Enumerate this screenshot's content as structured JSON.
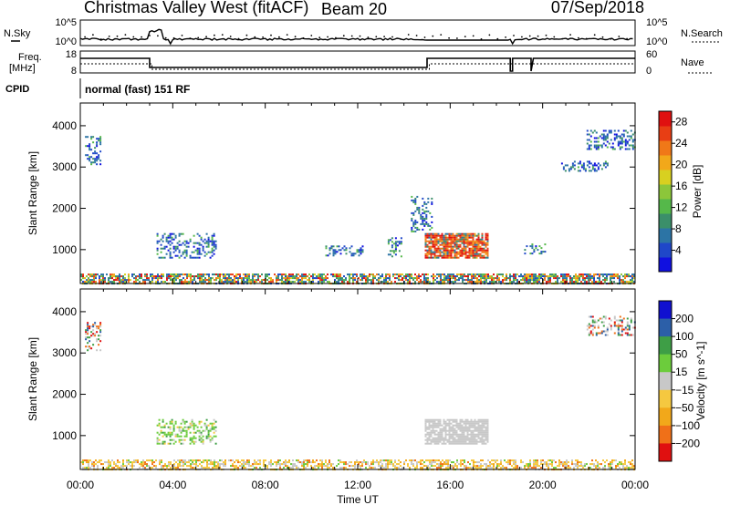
{
  "header": {
    "title": "Christmas Valley West (fitACF)",
    "beam": "Beam 20",
    "date": "07/Sep/2018"
  },
  "strip_noise": {
    "left_label": "N.Sky",
    "right_label": "N.Search",
    "left_ticks": [
      "10^5",
      "10^0"
    ],
    "right_ticks": [
      "10^5",
      "10^0"
    ]
  },
  "strip_freq": {
    "left_label_1": "Freq.",
    "left_label_2": "[MHz]",
    "right_label": "Nave",
    "left_ticks": [
      "18",
      "8"
    ],
    "right_ticks": [
      "60",
      "0"
    ]
  },
  "cpid": {
    "label": "CPID",
    "value": "normal (fast) 151 RF"
  },
  "colors": {
    "power": [
      "#1010e0",
      "#1f47c9",
      "#2c74a5",
      "#3b8f6a",
      "#55b84a",
      "#8cc63a",
      "#d8d020",
      "#f2a81a",
      "#f07818",
      "#e83e14",
      "#e01010"
    ],
    "velocity": [
      "#e01010",
      "#f07018",
      "#f2a81a",
      "#f5c840",
      "#c8c8c8",
      "#6ccc3c",
      "#3e9e46",
      "#2c5fa8",
      "#1010d0"
    ]
  },
  "chart_data": [
    {
      "type": "heatmap",
      "panel": "power",
      "xlabel": "",
      "ylabel": "Slant Range [km]",
      "x_ticks": [
        "00:00",
        "04:00",
        "08:00",
        "12:00",
        "16:00",
        "20:00",
        "00:00"
      ],
      "y_ticks": [
        "1000",
        "2000",
        "3000",
        "4000"
      ],
      "xlim_hours": [
        0,
        24
      ],
      "ylim_km": [
        180,
        4550
      ],
      "colorbar": {
        "label": "Power [dB]",
        "ticks": [
          "4",
          "8",
          "12",
          "16",
          "20",
          "24",
          "28"
        ],
        "range": [
          0,
          30
        ]
      },
      "echo_regions": [
        {
          "t0": 0.0,
          "t1": 24.0,
          "r0": 180,
          "r1": 420,
          "level": "mixed-high"
        },
        {
          "t0": 3.3,
          "t1": 5.9,
          "r0": 820,
          "r1": 1400,
          "level": "low"
        },
        {
          "t0": 14.9,
          "t1": 17.6,
          "r0": 820,
          "r1": 1400,
          "level": "high"
        },
        {
          "t0": 14.3,
          "t1": 15.2,
          "r0": 1450,
          "r1": 2300,
          "level": "low"
        },
        {
          "t0": 10.6,
          "t1": 12.2,
          "r0": 850,
          "r1": 1100,
          "level": "low"
        },
        {
          "t0": 13.3,
          "t1": 13.9,
          "r0": 820,
          "r1": 1300,
          "level": "low"
        },
        {
          "t0": 19.2,
          "t1": 20.1,
          "r0": 900,
          "r1": 1150,
          "level": "low"
        },
        {
          "t0": 0.2,
          "t1": 0.9,
          "r0": 3050,
          "r1": 3750,
          "level": "low"
        },
        {
          "t0": 21.9,
          "t1": 24.0,
          "r0": 3450,
          "r1": 3900,
          "level": "low"
        },
        {
          "t0": 20.8,
          "t1": 22.8,
          "r0": 2900,
          "r1": 3150,
          "level": "low"
        }
      ]
    },
    {
      "type": "heatmap",
      "panel": "velocity",
      "xlabel": "Time UT",
      "ylabel": "Slant Range [km]",
      "x_ticks": [
        "00:00",
        "04:00",
        "08:00",
        "12:00",
        "16:00",
        "20:00",
        "00:00"
      ],
      "y_ticks": [
        "1000",
        "2000",
        "3000",
        "4000"
      ],
      "xlim_hours": [
        0,
        24
      ],
      "ylim_km": [
        180,
        4550
      ],
      "colorbar": {
        "label": "Velocity [m s^-1]",
        "ticks": [
          "200",
          "100",
          "50",
          "15",
          "−15",
          "−50",
          "−100",
          "−200"
        ]
      },
      "echo_regions": [
        {
          "t0": 0.0,
          "t1": 24.0,
          "r0": 180,
          "r1": 420,
          "level": "negative-mixed"
        },
        {
          "t0": 3.3,
          "t1": 5.9,
          "r0": 820,
          "r1": 1400,
          "level": "positive-small"
        },
        {
          "t0": 14.9,
          "t1": 17.6,
          "r0": 820,
          "r1": 1400,
          "level": "ground"
        },
        {
          "t0": 21.9,
          "t1": 24.0,
          "r0": 3450,
          "r1": 3900,
          "level": "mixed"
        },
        {
          "t0": 0.2,
          "t1": 0.9,
          "r0": 3050,
          "r1": 3750,
          "level": "mixed"
        }
      ]
    }
  ]
}
